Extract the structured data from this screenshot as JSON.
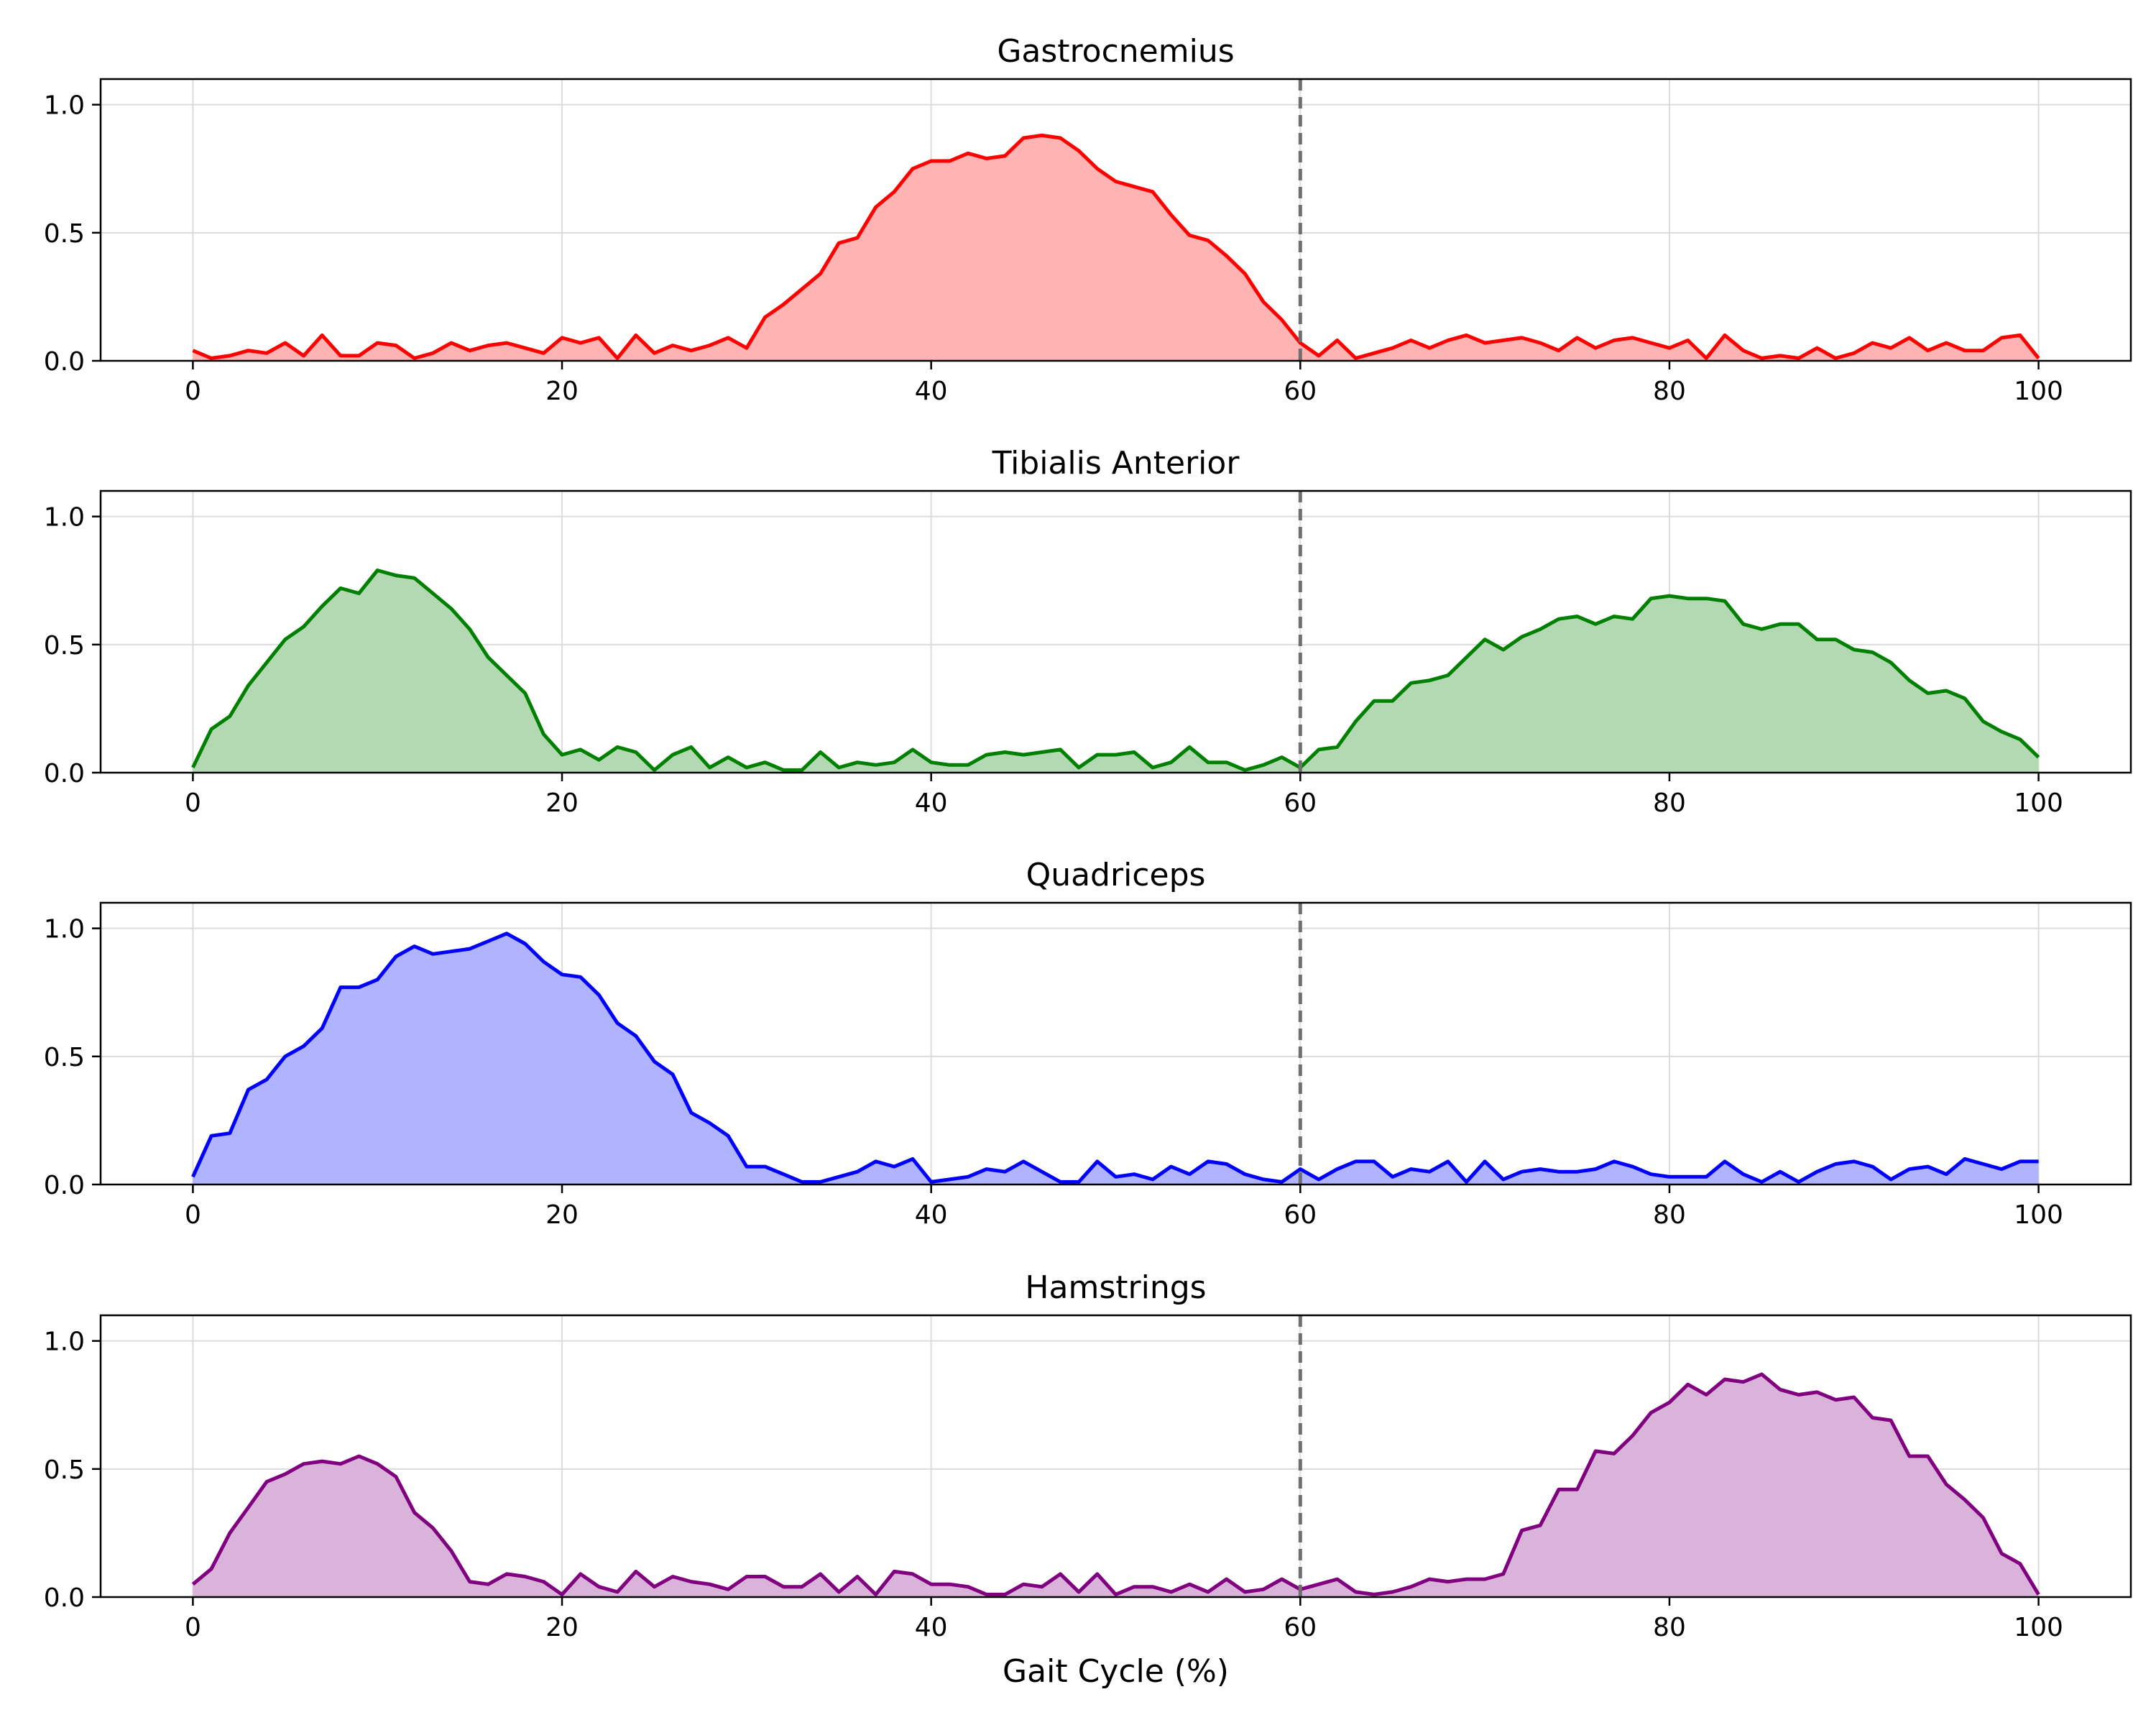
{
  "chart_data": [
    {
      "type": "area",
      "title": "Gastrocnemius",
      "color": "#ff0000",
      "fill": "#ffb3b3",
      "xlim": [
        -5,
        105
      ],
      "ylim": [
        0,
        1.1
      ],
      "x_ticks": [
        "0",
        "20",
        "40",
        "60",
        "80",
        "100"
      ],
      "y_ticks": [
        "0.0",
        "0.5",
        "1.0"
      ],
      "grid": true,
      "marker_x": 60,
      "xlabel": "",
      "y": [
        0.04,
        0.01,
        0.02,
        0.04,
        0.03,
        0.07,
        0.02,
        0.1,
        0.02,
        0.02,
        0.07,
        0.06,
        0.01,
        0.03,
        0.07,
        0.04,
        0.06,
        0.07,
        0.05,
        0.03,
        0.09,
        0.07,
        0.09,
        0.01,
        0.1,
        0.03,
        0.06,
        0.04,
        0.06,
        0.09,
        0.05,
        0.17,
        0.22,
        0.28,
        0.34,
        0.46,
        0.48,
        0.6,
        0.66,
        0.75,
        0.78,
        0.78,
        0.81,
        0.79,
        0.8,
        0.87,
        0.88,
        0.87,
        0.82,
        0.75,
        0.7,
        0.68,
        0.66,
        0.57,
        0.49,
        0.47,
        0.41,
        0.34,
        0.23,
        0.16,
        0.07,
        0.02,
        0.08,
        0.01,
        0.03,
        0.05,
        0.08,
        0.05,
        0.08,
        0.1,
        0.07,
        0.08,
        0.09,
        0.07,
        0.04,
        0.09,
        0.05,
        0.08,
        0.09,
        0.07,
        0.05,
        0.08,
        0.01,
        0.1,
        0.04,
        0.01,
        0.02,
        0.01,
        0.05,
        0.01,
        0.03,
        0.07,
        0.05,
        0.09,
        0.04,
        0.07,
        0.04,
        0.04,
        0.09,
        0.1,
        0.01
      ]
    },
    {
      "type": "area",
      "title": "Tibialis Anterior",
      "color": "#008000",
      "fill": "#b3d9b3",
      "xlim": [
        -5,
        105
      ],
      "ylim": [
        0,
        1.1
      ],
      "x_ticks": [
        "0",
        "20",
        "40",
        "60",
        "80",
        "100"
      ],
      "y_ticks": [
        "0.0",
        "0.5",
        "1.0"
      ],
      "grid": true,
      "marker_x": 60,
      "xlabel": "",
      "y": [
        0.02,
        0.17,
        0.22,
        0.34,
        0.43,
        0.52,
        0.57,
        0.65,
        0.72,
        0.7,
        0.79,
        0.77,
        0.76,
        0.7,
        0.64,
        0.56,
        0.45,
        0.38,
        0.31,
        0.15,
        0.07,
        0.09,
        0.05,
        0.1,
        0.08,
        0.01,
        0.07,
        0.1,
        0.02,
        0.06,
        0.02,
        0.04,
        0.01,
        0.01,
        0.08,
        0.02,
        0.04,
        0.03,
        0.04,
        0.09,
        0.04,
        0.03,
        0.03,
        0.07,
        0.08,
        0.07,
        0.08,
        0.09,
        0.02,
        0.07,
        0.07,
        0.08,
        0.02,
        0.04,
        0.1,
        0.04,
        0.04,
        0.01,
        0.03,
        0.06,
        0.02,
        0.09,
        0.1,
        0.2,
        0.28,
        0.28,
        0.35,
        0.36,
        0.38,
        0.45,
        0.52,
        0.48,
        0.53,
        0.56,
        0.6,
        0.61,
        0.58,
        0.61,
        0.6,
        0.68,
        0.69,
        0.68,
        0.68,
        0.67,
        0.58,
        0.56,
        0.58,
        0.58,
        0.52,
        0.52,
        0.48,
        0.47,
        0.43,
        0.36,
        0.31,
        0.32,
        0.29,
        0.2,
        0.16,
        0.13,
        0.06
      ]
    },
    {
      "type": "area",
      "title": "Quadriceps",
      "color": "#0000ff",
      "fill": "#b0b3ff",
      "xlim": [
        -5,
        105
      ],
      "ylim": [
        0,
        1.1
      ],
      "x_ticks": [
        "0",
        "20",
        "40",
        "60",
        "80",
        "100"
      ],
      "y_ticks": [
        "0.0",
        "0.5",
        "1.0"
      ],
      "grid": true,
      "marker_x": 60,
      "xlabel": "",
      "y": [
        0.03,
        0.19,
        0.2,
        0.37,
        0.41,
        0.5,
        0.54,
        0.61,
        0.77,
        0.77,
        0.8,
        0.89,
        0.93,
        0.9,
        0.91,
        0.92,
        0.95,
        0.98,
        0.94,
        0.87,
        0.82,
        0.81,
        0.74,
        0.63,
        0.58,
        0.48,
        0.43,
        0.28,
        0.24,
        0.19,
        0.07,
        0.07,
        0.04,
        0.01,
        0.01,
        0.03,
        0.05,
        0.09,
        0.07,
        0.1,
        0.01,
        0.02,
        0.03,
        0.06,
        0.05,
        0.09,
        0.05,
        0.01,
        0.01,
        0.09,
        0.03,
        0.04,
        0.02,
        0.07,
        0.04,
        0.09,
        0.08,
        0.04,
        0.02,
        0.01,
        0.06,
        0.02,
        0.06,
        0.09,
        0.09,
        0.03,
        0.06,
        0.05,
        0.09,
        0.01,
        0.09,
        0.02,
        0.05,
        0.06,
        0.05,
        0.05,
        0.06,
        0.09,
        0.07,
        0.04,
        0.03,
        0.03,
        0.03,
        0.09,
        0.04,
        0.01,
        0.05,
        0.01,
        0.05,
        0.08,
        0.09,
        0.07,
        0.02,
        0.06,
        0.07,
        0.04,
        0.1,
        0.08,
        0.06,
        0.09,
        0.09
      ]
    },
    {
      "type": "area",
      "title": "Hamstrings",
      "color": "#800080",
      "fill": "#d9b3d9",
      "xlim": [
        -5,
        105
      ],
      "ylim": [
        0,
        1.1
      ],
      "x_ticks": [
        "0",
        "20",
        "40",
        "60",
        "80",
        "100"
      ],
      "y_ticks": [
        "0.0",
        "0.5",
        "1.0"
      ],
      "grid": true,
      "marker_x": 60,
      "xlabel": "Gait Cycle (%)",
      "y": [
        0.05,
        0.11,
        0.25,
        0.35,
        0.45,
        0.48,
        0.52,
        0.53,
        0.52,
        0.55,
        0.52,
        0.47,
        0.33,
        0.27,
        0.18,
        0.06,
        0.05,
        0.09,
        0.08,
        0.06,
        0.01,
        0.09,
        0.04,
        0.02,
        0.1,
        0.04,
        0.08,
        0.06,
        0.05,
        0.03,
        0.08,
        0.08,
        0.04,
        0.04,
        0.09,
        0.02,
        0.08,
        0.01,
        0.1,
        0.09,
        0.05,
        0.05,
        0.04,
        0.01,
        0.01,
        0.05,
        0.04,
        0.09,
        0.02,
        0.09,
        0.01,
        0.04,
        0.04,
        0.02,
        0.05,
        0.02,
        0.07,
        0.02,
        0.03,
        0.07,
        0.03,
        0.05,
        0.07,
        0.02,
        0.01,
        0.02,
        0.04,
        0.07,
        0.06,
        0.07,
        0.07,
        0.09,
        0.26,
        0.28,
        0.42,
        0.42,
        0.57,
        0.56,
        0.63,
        0.72,
        0.76,
        0.83,
        0.79,
        0.85,
        0.84,
        0.87,
        0.81,
        0.79,
        0.8,
        0.77,
        0.78,
        0.7,
        0.69,
        0.55,
        0.55,
        0.44,
        0.38,
        0.31,
        0.17,
        0.13,
        0.01
      ]
    }
  ]
}
